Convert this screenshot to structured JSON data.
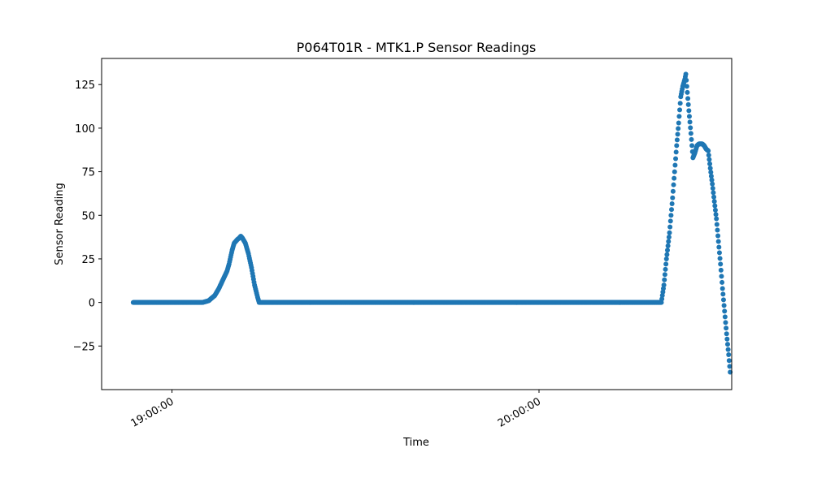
{
  "chart_data": {
    "type": "scatter",
    "title": "P064T01R - MTK1.P Sensor Readings",
    "xlabel": "Time",
    "ylabel": "Sensor Reading",
    "x_range": [
      "18:48:30",
      "20:31:30"
    ],
    "ylim": [
      -50,
      140
    ],
    "y_ticks": [
      -25,
      0,
      25,
      50,
      75,
      100,
      125
    ],
    "x_ticks": [
      "19:00:00",
      "20:00:00"
    ],
    "x_tick_rotation_deg": 30,
    "grid": false,
    "legend": "none",
    "marker_color": "#1f77b4",
    "series": [
      {
        "points": [
          [
            "18:53:40",
            0
          ],
          [
            "19:05:00",
            0
          ],
          [
            "19:06:00",
            1
          ],
          [
            "19:07:00",
            4
          ],
          [
            "19:07:40",
            8
          ],
          [
            "19:08:20",
            13
          ],
          [
            "19:09:00",
            18
          ],
          [
            "19:09:20",
            22
          ],
          [
            "19:09:50",
            30
          ],
          [
            "19:10:10",
            34
          ],
          [
            "19:10:40",
            36
          ],
          [
            "19:11:00",
            37
          ],
          [
            "19:11:15",
            38
          ],
          [
            "19:11:30",
            37
          ],
          [
            "19:12:00",
            34
          ],
          [
            "19:12:30",
            28
          ],
          [
            "19:13:00",
            20
          ],
          [
            "19:13:30",
            10
          ],
          [
            "19:14:00",
            3
          ],
          [
            "19:14:15",
            0
          ],
          [
            "20:20:00",
            0
          ],
          [
            "20:20:25",
            10
          ],
          [
            "20:20:50",
            25
          ],
          [
            "20:21:20",
            40
          ],
          [
            "20:21:50",
            60
          ],
          [
            "20:22:10",
            75
          ],
          [
            "20:22:30",
            90
          ],
          [
            "20:22:50",
            103
          ],
          [
            "20:23:10",
            118
          ],
          [
            "20:23:30",
            124
          ],
          [
            "20:23:50",
            128
          ],
          [
            "20:24:00",
            131
          ],
          [
            "20:24:10",
            124
          ],
          [
            "20:24:30",
            110
          ],
          [
            "20:24:50",
            97
          ],
          [
            "20:25:10",
            83
          ],
          [
            "20:25:30",
            86
          ],
          [
            "20:25:50",
            90
          ],
          [
            "20:26:10",
            91
          ],
          [
            "20:26:40",
            91
          ],
          [
            "20:27:00",
            90
          ],
          [
            "20:27:20",
            88
          ],
          [
            "20:27:40",
            87
          ],
          [
            "20:28:00",
            77
          ],
          [
            "20:28:20",
            68
          ],
          [
            "20:28:40",
            58
          ],
          [
            "20:29:00",
            48
          ],
          [
            "20:29:20",
            35
          ],
          [
            "20:29:40",
            22
          ],
          [
            "20:30:00",
            8
          ],
          [
            "20:30:20",
            -5
          ],
          [
            "20:30:40",
            -18
          ],
          [
            "20:31:00",
            -30
          ],
          [
            "20:31:15",
            -40
          ]
        ]
      }
    ]
  }
}
